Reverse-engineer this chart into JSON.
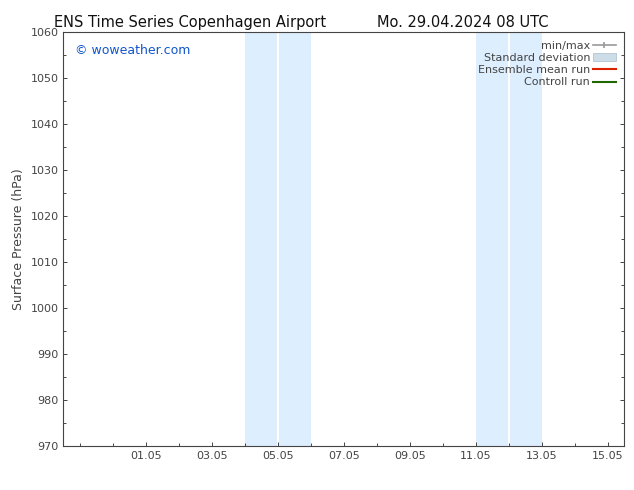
{
  "title_left": "ENS Time Series Copenhagen Airport",
  "title_right": "Mo. 29.04.2024 08 UTC",
  "ylabel": "Surface Pressure (hPa)",
  "ylim": [
    970,
    1060
  ],
  "yticks": [
    970,
    980,
    990,
    1000,
    1010,
    1020,
    1030,
    1040,
    1050,
    1060
  ],
  "xtick_labels": [
    "01.05",
    "03.05",
    "05.05",
    "07.05",
    "09.05",
    "11.05",
    "13.05",
    "15.05"
  ],
  "xtick_positions": [
    1.0,
    3.0,
    5.0,
    7.0,
    9.0,
    11.0,
    13.0,
    15.0
  ],
  "xlim": [
    -1.5,
    15.5
  ],
  "shaded_bands": [
    {
      "x_start": 4.0,
      "x_end": 5.0
    },
    {
      "x_start": 5.0,
      "x_end": 6.0
    },
    {
      "x_start": 11.0,
      "x_end": 12.0
    },
    {
      "x_start": 12.0,
      "x_end": 13.0
    }
  ],
  "shaded_color": "#ddeeff",
  "band_separator_color": "#ffffff",
  "watermark": "© woweather.com",
  "watermark_color": "#1155cc",
  "background_color": "#ffffff",
  "tick_color": "#444444",
  "spine_color": "#444444",
  "font_family": "DejaVu Sans",
  "title_fontsize": 10.5,
  "axis_label_fontsize": 9,
  "tick_fontsize": 8,
  "legend_fontsize": 8,
  "minmax_color": "#999999",
  "std_color": "#ccdde8",
  "ensemble_color": "#dd2200",
  "control_color": "#226600"
}
